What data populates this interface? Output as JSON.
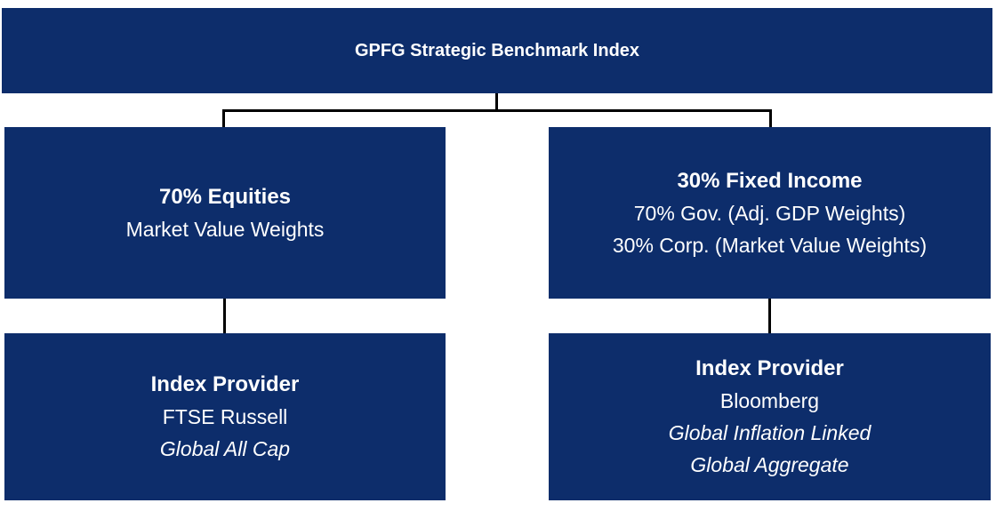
{
  "colors": {
    "box_bg": "#0d2d6b",
    "box_text": "#ffffff",
    "connector": "#000000",
    "background": "#ffffff"
  },
  "root": {
    "title": "GPFG Strategic Benchmark Index"
  },
  "equities": {
    "heading": "70% Equities",
    "line1": "Market Value Weights"
  },
  "fixed_income": {
    "heading": "30% Fixed Income",
    "line1": "70% Gov. (Adj. GDP Weights)",
    "line2": "30% Corp. (Market Value Weights)"
  },
  "equities_provider": {
    "heading": "Index Provider",
    "name": "FTSE Russell",
    "index1": "Global All Cap"
  },
  "fixed_income_provider": {
    "heading": "Index Provider",
    "name": "Bloomberg",
    "index1": "Global Inflation Linked",
    "index2": "Global Aggregate"
  }
}
